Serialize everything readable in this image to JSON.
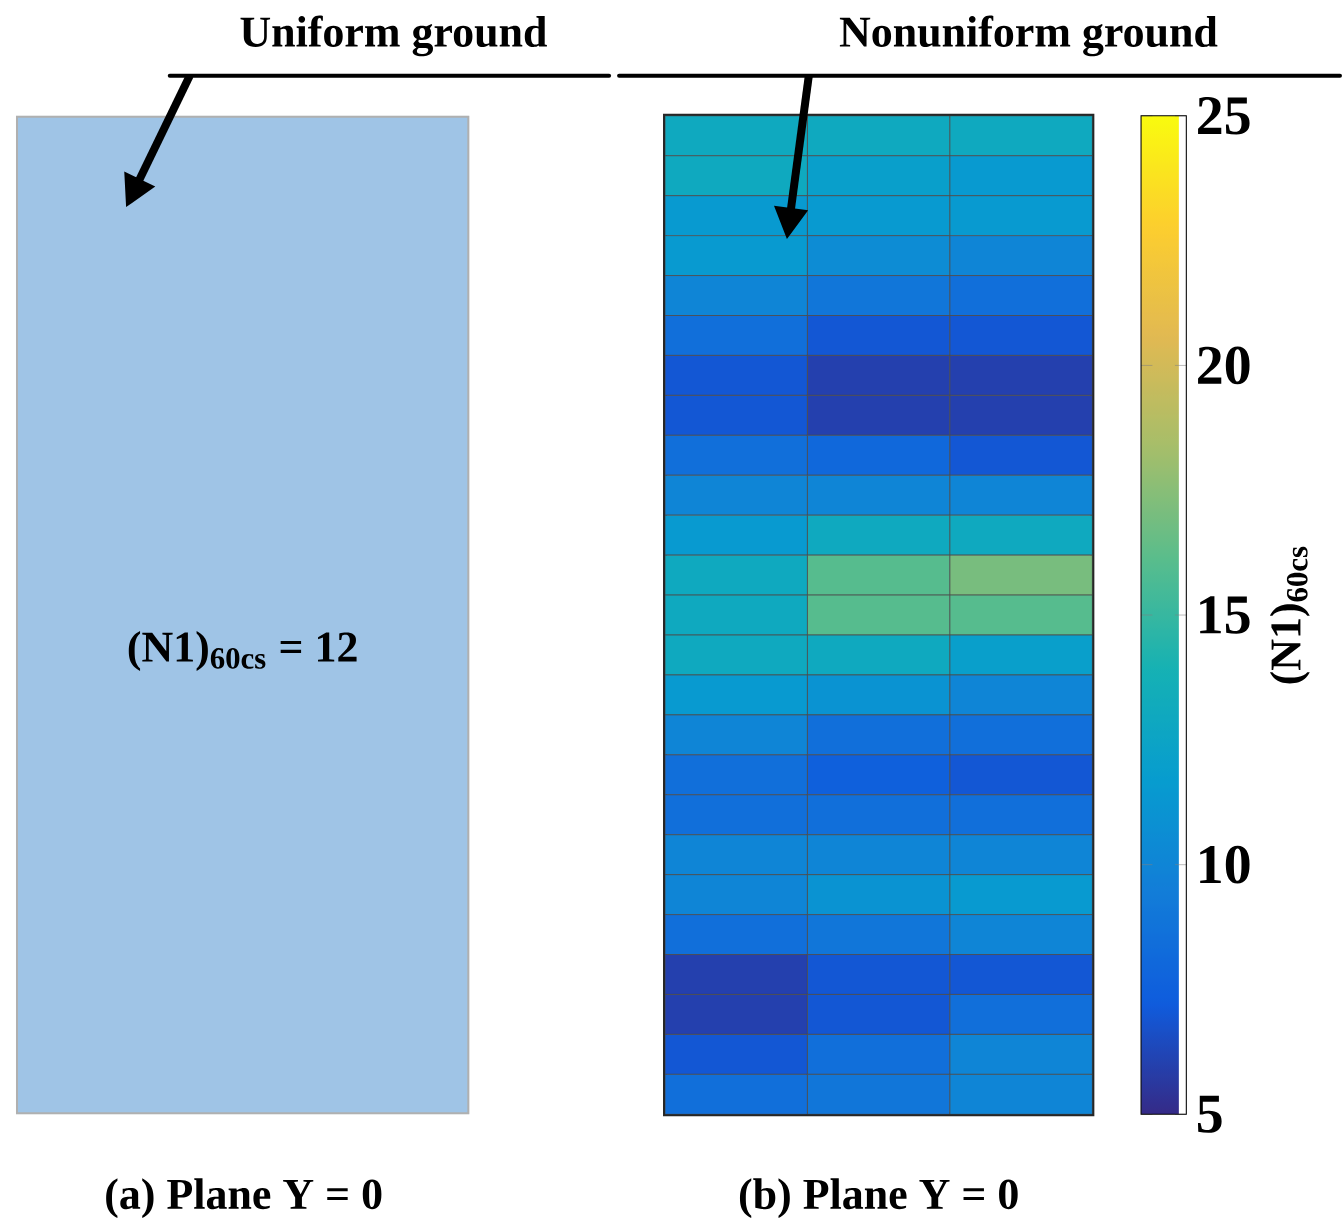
{
  "chart_data": [
    {
      "type": "other",
      "title": "(a) Plane Y = 0",
      "color": "#9fc4e6",
      "annotations": [
        "Uniform ground",
        "(N1)$_{60cs}$ = 12"
      ]
    },
    {
      "type": "heatmap",
      "title": "(b) Plane Y = 0",
      "annotations": [
        "Nonuniform ground"
      ],
      "clabel": "(N1)$_{60cs}$",
      "tick_labels": false,
      "categories": [
        null,
        null,
        null
      ],
      "y_categories": [
        null,
        null,
        null,
        null,
        null,
        null,
        null,
        null,
        null,
        null,
        null,
        null,
        null,
        null,
        null,
        null,
        null,
        null,
        null,
        null,
        null,
        null,
        null,
        null,
        null
      ],
      "cells": [
        [
          13,
          13,
          13
        ],
        [
          13,
          12,
          11.5
        ],
        [
          11.5,
          11.5,
          11.5
        ],
        [
          11.5,
          10.5,
          10
        ],
        [
          10,
          9,
          8.5
        ],
        [
          8.5,
          7,
          7
        ],
        [
          7,
          6,
          6
        ],
        [
          7,
          6,
          6
        ],
        [
          8.5,
          8,
          7
        ],
        [
          10,
          10,
          10
        ],
        [
          11.5,
          13,
          13
        ],
        [
          13,
          16,
          17
        ],
        [
          13,
          16,
          16
        ],
        [
          13,
          13,
          12
        ],
        [
          11.5,
          11,
          10
        ],
        [
          10,
          8.5,
          8.5
        ],
        [
          8.5,
          7.5,
          7
        ],
        [
          8.5,
          8.5,
          8.5
        ],
        [
          10,
          10,
          10
        ],
        [
          10,
          11,
          11.5
        ],
        [
          8.5,
          9,
          10
        ],
        [
          6,
          7,
          7
        ],
        [
          6,
          7,
          8.5
        ],
        [
          7,
          8.5,
          10
        ],
        [
          8.5,
          9,
          10
        ]
      ],
      "clim": [
        5,
        25
      ],
      "cticks": [
        5,
        10,
        15,
        20,
        25
      ]
    }
  ]
}
